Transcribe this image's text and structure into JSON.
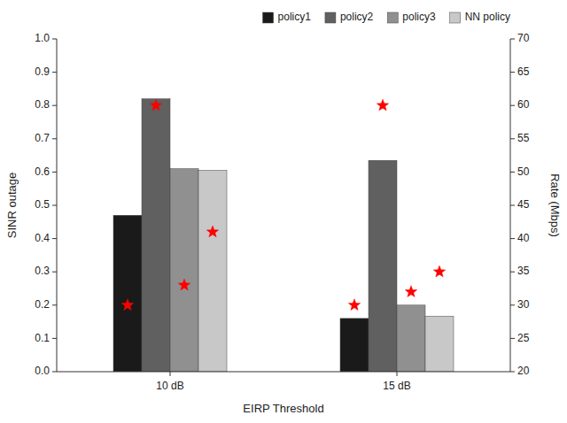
{
  "chart_data": {
    "type": "bar",
    "xlabel": "EIRP Threshold",
    "ylabel": "SINR outage",
    "y2label": "Rate (Mbps)",
    "categories": [
      "10 dB",
      "15 dB"
    ],
    "series": [
      {
        "name": "policy1",
        "color": "#1a1a1a",
        "values": [
          0.47,
          0.16
        ]
      },
      {
        "name": "policy2",
        "color": "#606060",
        "values": [
          0.82,
          0.635
        ]
      },
      {
        "name": "policy3",
        "color": "#909090",
        "values": [
          0.61,
          0.2
        ]
      },
      {
        "name": "NN policy",
        "color": "#c8c8c8",
        "values": [
          0.605,
          0.167
        ]
      },
      {
        "type": "scatter",
        "axis": "y2",
        "marker": "star",
        "color": "red",
        "values": [
          30.0,
          30.0
        ]
      },
      {
        "type": "scatter",
        "axis": "y2",
        "marker": "star",
        "color": "red",
        "values": [
          60.0,
          60.0
        ]
      },
      {
        "type": "scatter",
        "axis": "y2",
        "marker": "star",
        "color": "red",
        "values": [
          33.0,
          32.0
        ]
      },
      {
        "type": "scatter",
        "axis": "y2",
        "marker": "star",
        "color": "red",
        "values": [
          41.0,
          35.0
        ]
      }
    ],
    "ylim": [
      0,
      1
    ],
    "yticks": [
      {
        "value": 0,
        "label": "0.0"
      },
      0.1,
      0.2,
      0.3,
      0.4,
      0.5,
      0.6,
      0.7,
      0.8,
      0.9,
      {
        "value": 1.0,
        "label": "1.0"
      }
    ],
    "y2lim": [
      20,
      70
    ],
    "y2ticks": [
      20,
      25,
      30,
      35,
      40,
      45,
      50,
      55,
      60,
      65,
      70
    ],
    "grid": false,
    "legend": "upper right"
  }
}
